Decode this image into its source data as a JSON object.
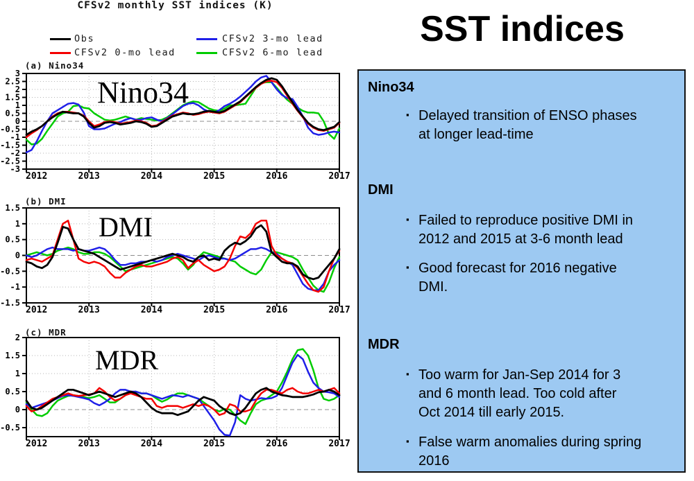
{
  "left": {
    "title": "CFSv2 monthly SST indices (K)",
    "legend": [
      {
        "label": "Obs",
        "color": "#000000"
      },
      {
        "label": "CFSv2 0-mo lead",
        "color": "#f40000"
      },
      {
        "label": "CFSv2 3-mo lead",
        "color": "#1f1fe8"
      },
      {
        "label": "CFSv2 6-mo lead",
        "color": "#00cc00"
      }
    ]
  },
  "right": {
    "title": "SST indices",
    "panel_color": "#9dc9f2",
    "bullet_char": "▪",
    "sections": [
      {
        "heading": "Nino34",
        "bullets": [
          "Delayed transition of ENSO phases\nat longer lead-time"
        ]
      },
      {
        "heading": "DMI",
        "bullets": [
          "Failed to reproduce positive DMI in\n2012 and 2015 at 3-6 month lead",
          "Good forecast for 2016 negative\nDMI."
        ]
      },
      {
        "heading": "MDR",
        "bullets": [
          "Too warm for Jan-Sep 2014 for 3\nand 6 month lead.  Too cold after\nOct 2014 till early 2015.",
          "False warm anomalies during spring\n2016"
        ]
      }
    ]
  },
  "chart_data": [
    {
      "type": "line",
      "panel_label": "(a) Nino34",
      "inner_title": "Nino34",
      "title": "CFSv2 monthly SST indices (K)",
      "x_range": [
        2012,
        2017
      ],
      "x_ticks": [
        2012,
        2013,
        2014,
        2015,
        2016,
        2017
      ],
      "points_per_year": 12,
      "ylim": [
        -3,
        3
      ],
      "ytick_step": 0.5,
      "grid": "dotted",
      "zero_line": true,
      "series": [
        {
          "name": "Obs",
          "color": "#000000",
          "values": [
            -0.85,
            -0.65,
            -0.5,
            -0.3,
            0,
            0.25,
            0.45,
            0.6,
            0.55,
            0.5,
            0.5,
            0.3,
            -0.1,
            -0.4,
            -0.3,
            -0.1,
            -0.05,
            -0.1,
            -0.2,
            -0.15,
            -0.1,
            0,
            -0.05,
            -0.15,
            -0.35,
            -0.3,
            -0.1,
            0.1,
            0.3,
            0.4,
            0.5,
            0.45,
            0.45,
            0.5,
            0.6,
            0.65,
            0.6,
            0.55,
            0.65,
            0.85,
            1.05,
            1.25,
            1.55,
            1.85,
            2.15,
            2.4,
            2.6,
            2.7,
            2.6,
            2.2,
            1.7,
            1.2,
            0.7,
            0.3,
            -0.1,
            -0.35,
            -0.5,
            -0.55,
            -0.45,
            -0.35,
            -0.05
          ]
        },
        {
          "name": "CFSv2 0-mo lead",
          "color": "#f40000",
          "values": [
            -1,
            -0.75,
            -0.55,
            -0.3,
            0,
            0.3,
            0.5,
            0.6,
            0.6,
            0.55,
            0.5,
            0.35,
            0,
            -0.3,
            -0.2,
            -0.05,
            0,
            -0.05,
            -0.15,
            -0.1,
            -0.05,
            0.05,
            0,
            -0.1,
            -0.3,
            -0.25,
            -0.05,
            0.15,
            0.35,
            0.45,
            0.55,
            0.5,
            0.4,
            0.45,
            0.55,
            0.6,
            0.55,
            0.5,
            0.6,
            0.8,
            1,
            1.2,
            1.5,
            1.8,
            2.1,
            2.35,
            2.5,
            2.55,
            2.45,
            2.1,
            1.6,
            1.1,
            0.65,
            0.25,
            -0.15,
            -0.4,
            -0.55,
            -0.6,
            -0.5,
            -0.4,
            -0.1
          ]
        },
        {
          "name": "CFSv2 3-mo lead",
          "color": "#1f1fe8",
          "values": [
            -1.95,
            -1.8,
            -1.25,
            -0.6,
            0,
            0.5,
            0.7,
            0.9,
            1.1,
            1.15,
            1.05,
            0.55,
            -0.3,
            -0.5,
            -0.5,
            -0.45,
            -0.3,
            -0.15,
            -0.05,
            0.1,
            0.2,
            0.1,
            0.1,
            0.2,
            0.25,
            0.1,
            0,
            0.2,
            0.45,
            0.7,
            0.95,
            1.1,
            1.15,
            1,
            0.75,
            0.6,
            0.55,
            0.7,
            0.95,
            1.1,
            1.3,
            1.55,
            1.85,
            2.15,
            2.5,
            2.75,
            2.85,
            2.45,
            2,
            1.65,
            1.45,
            1.4,
            0.9,
            0.3,
            -0.4,
            -0.75,
            -0.85,
            -0.8,
            -0.7,
            -0.65,
            -0.7
          ]
        },
        {
          "name": "CFSv2 6-mo lead",
          "color": "#00cc00",
          "values": [
            -1.15,
            -1.45,
            -1.4,
            -1.1,
            -0.6,
            -0.15,
            0.3,
            0.5,
            0.6,
            0.95,
            1,
            0.85,
            0.8,
            0.5,
            0.3,
            0.1,
            0.05,
            0.1,
            0.2,
            0.3,
            0.2,
            0.1,
            0.2,
            0.15,
            0.1,
            0.05,
            0.1,
            0.25,
            0.5,
            0.75,
            1,
            1.15,
            1.25,
            1.2,
            1,
            0.8,
            0.7,
            0.65,
            0.8,
            1,
            1,
            1.05,
            1.1,
            1.6,
            2.1,
            2.4,
            2.45,
            2.45,
            2.1,
            1.7,
            1.35,
            1.1,
            0.85,
            0.65,
            0.55,
            0.55,
            0.5,
            0,
            -0.8,
            -1.1,
            -0.45
          ]
        }
      ]
    },
    {
      "type": "line",
      "panel_label": "(b) DMI",
      "inner_title": "DMI",
      "x_range": [
        2012,
        2017
      ],
      "x_ticks": [
        2012,
        2013,
        2014,
        2015,
        2016,
        2017
      ],
      "points_per_year": 12,
      "ylim": [
        -1.5,
        1.5
      ],
      "ytick_step": 0.5,
      "grid": "dotted",
      "zero_line": true,
      "series": [
        {
          "name": "Obs",
          "color": "#000000",
          "values": [
            -0.2,
            -0.25,
            -0.35,
            -0.4,
            -0.3,
            -0.05,
            0.4,
            0.9,
            0.85,
            0.5,
            0.2,
            0.15,
            0.1,
            0.05,
            -0.05,
            -0.15,
            -0.25,
            -0.35,
            -0.45,
            -0.4,
            -0.35,
            -0.3,
            -0.25,
            -0.2,
            -0.15,
            -0.1,
            -0.05,
            0,
            0.05,
            0,
            -0.05,
            -0.15,
            -0.2,
            -0.05,
            0,
            -0.15,
            -0.1,
            -0.15,
            0.15,
            0.3,
            0.4,
            0.35,
            0.45,
            0.6,
            0.85,
            0.95,
            0.75,
            0.1,
            -0.05,
            -0.2,
            -0.25,
            -0.25,
            -0.35,
            -0.6,
            -0.7,
            -0.75,
            -0.7,
            -0.5,
            -0.3,
            -0.1,
            0.2
          ]
        },
        {
          "name": "CFSv2 0-mo lead",
          "color": "#f40000",
          "values": [
            -0.15,
            -0.1,
            -0.15,
            -0.2,
            -0.1,
            0,
            0.5,
            1,
            1.1,
            0.5,
            -0.1,
            -0.2,
            -0.25,
            -0.2,
            -0.25,
            -0.35,
            -0.55,
            -0.7,
            -0.7,
            -0.55,
            -0.45,
            -0.35,
            -0.3,
            -0.35,
            -0.35,
            -0.3,
            -0.25,
            -0.2,
            -0.1,
            -0.05,
            -0.15,
            -0.4,
            -0.25,
            -0.15,
            -0.3,
            -0.4,
            -0.5,
            -0.45,
            -0.35,
            -0.1,
            0.3,
            0.6,
            0.55,
            0.7,
            1,
            1.1,
            1.1,
            0.3,
            0,
            -0.1,
            -0.2,
            -0.25,
            -0.4,
            -0.65,
            -0.9,
            -1.1,
            -1.15,
            -1,
            -0.5,
            -0.1,
            0.15
          ]
        },
        {
          "name": "CFSv2 3-mo lead",
          "color": "#1f1fe8",
          "values": [
            0,
            -0.05,
            0,
            0.1,
            0.2,
            0.25,
            0.2,
            0.2,
            0.2,
            0.15,
            0.2,
            0.15,
            0.15,
            0.2,
            0.25,
            0.2,
            0.05,
            -0.15,
            -0.3,
            -0.3,
            -0.25,
            -0.25,
            -0.2,
            -0.2,
            -0.15,
            -0.2,
            -0.15,
            -0.05,
            0,
            0.05,
            0,
            -0.05,
            -0.1,
            -0.15,
            -0.05,
            0,
            -0.05,
            -0.1,
            -0.1,
            -0.15,
            -0.1,
            0,
            0.1,
            0.2,
            0.2,
            0.25,
            0.2,
            0.1,
            0.05,
            -0.1,
            -0.2,
            -0.3,
            -0.6,
            -0.9,
            -1.05,
            -1.1,
            -1.1,
            -0.9,
            -0.5,
            -0.3,
            -0.15
          ]
        },
        {
          "name": "CFSv2 6-mo lead",
          "color": "#00cc00",
          "values": [
            0,
            0.05,
            0.1,
            0.05,
            0,
            0.05,
            0.15,
            0.2,
            0.25,
            0.2,
            0.1,
            0.05,
            0.05,
            0.1,
            0.1,
            0.05,
            -0.05,
            -0.2,
            -0.35,
            -0.5,
            -0.45,
            -0.4,
            -0.35,
            -0.3,
            -0.25,
            -0.2,
            -0.15,
            -0.1,
            -0.05,
            -0.1,
            -0.25,
            -0.45,
            -0.3,
            -0.05,
            0.1,
            0.05,
            0,
            -0.05,
            -0.1,
            -0.15,
            -0.2,
            -0.35,
            -0.45,
            -0.55,
            -0.6,
            -0.45,
            -0.15,
            0.1,
            0.1,
            0.05,
            0,
            -0.05,
            -0.15,
            -0.45,
            -0.7,
            -0.95,
            -1.1,
            -1.15,
            -0.85,
            -0.4,
            -0.05
          ]
        }
      ]
    },
    {
      "type": "line",
      "panel_label": "(c) MDR",
      "inner_title": "MDR",
      "x_range": [
        2012,
        2017
      ],
      "x_ticks": [
        2012,
        2013,
        2014,
        2015,
        2016,
        2017
      ],
      "points_per_year": 12,
      "ylim": [
        -0.75,
        2
      ],
      "ytick_step": 0.5,
      "grid": "dotted",
      "zero_line": true,
      "series": [
        {
          "name": "Obs",
          "color": "#000000",
          "values": [
            0.25,
            0.05,
            0,
            0.05,
            0.15,
            0.25,
            0.35,
            0.45,
            0.55,
            0.55,
            0.5,
            0.45,
            0.4,
            0.45,
            0.5,
            0.45,
            0.4,
            0.35,
            0.4,
            0.45,
            0.5,
            0.45,
            0.35,
            0.2,
            0.05,
            -0.05,
            -0.1,
            -0.1,
            -0.1,
            -0.15,
            -0.1,
            -0.05,
            0.1,
            0.25,
            0.35,
            0.3,
            0.25,
            0.1,
            0,
            -0.1,
            -0.15,
            -0.1,
            0.05,
            0.25,
            0.45,
            0.55,
            0.6,
            0.5,
            0.45,
            0.4,
            0.38,
            0.35,
            0.35,
            0.35,
            0.38,
            0.42,
            0.48,
            0.5,
            0.55,
            0.5,
            0.4
          ]
        },
        {
          "name": "CFSv2 0-mo lead",
          "color": "#f40000",
          "values": [
            0.1,
            -0.05,
            0,
            0.1,
            0.2,
            0.3,
            0.35,
            0.4,
            0.45,
            0.4,
            0.38,
            0.4,
            0.42,
            0.45,
            0.6,
            0.5,
            0.35,
            0.25,
            0.3,
            0.4,
            0.45,
            0.4,
            0.35,
            0.3,
            0.3,
            0.1,
            0.05,
            0.1,
            0.1,
            0.1,
            0.05,
            0.1,
            0.15,
            0.1,
            0.15,
            0.1,
            0,
            -0.15,
            -0.1,
            0.15,
            0.1,
            -0.05,
            -0.05,
            0,
            0.25,
            0.45,
            0.55,
            0.55,
            0.5,
            0.45,
            0.55,
            0.6,
            0.5,
            0.45,
            0.45,
            0.5,
            0.55,
            0.5,
            0.55,
            0.6,
            0.45
          ]
        },
        {
          "name": "CFSv2 3-mo lead",
          "color": "#1f1fe8",
          "values": [
            0.15,
            0.05,
            0.1,
            0.15,
            0.2,
            0.25,
            0.32,
            0.38,
            0.4,
            0.38,
            0.35,
            0.32,
            0.28,
            0.18,
            0.12,
            0.2,
            0.3,
            0.45,
            0.55,
            0.55,
            0.5,
            0.5,
            0.45,
            0.45,
            0.4,
            0.35,
            0.3,
            0.35,
            0.4,
            0.38,
            0.35,
            0.4,
            0.35,
            0.3,
            0.1,
            -0.1,
            -0.3,
            -0.55,
            -0.7,
            -0.72,
            -0.35,
            0.4,
            0.3,
            0.25,
            0.28,
            0.32,
            0.3,
            0.32,
            0.38,
            0.6,
            0.95,
            1.3,
            1.52,
            1.4,
            1.05,
            0.75,
            0.6,
            0.5,
            0.48,
            0.45,
            0.35
          ]
        },
        {
          "name": "CFSv2 6-mo lead",
          "color": "#00cc00",
          "values": [
            0.2,
            0,
            -0.15,
            -0.18,
            -0.1,
            0.1,
            0.25,
            0.32,
            0.38,
            0.4,
            0.38,
            0.35,
            0.32,
            0.35,
            0.4,
            0.3,
            0.2,
            0.2,
            0.3,
            0.4,
            0.48,
            0.5,
            0.45,
            0.45,
            0.4,
            0.3,
            0.22,
            0.28,
            0.38,
            0.45,
            0.45,
            0.4,
            0.35,
            0.3,
            0.2,
            0.1,
            0,
            -0.05,
            0.02,
            0,
            -0.15,
            -0.3,
            -0.4,
            -0.1,
            0.15,
            0.25,
            0.3,
            0.4,
            0.5,
            0.75,
            1.05,
            1.4,
            1.65,
            1.68,
            1.5,
            1.1,
            0.6,
            0.3,
            0.25,
            0.3,
            0.4
          ]
        }
      ]
    }
  ]
}
